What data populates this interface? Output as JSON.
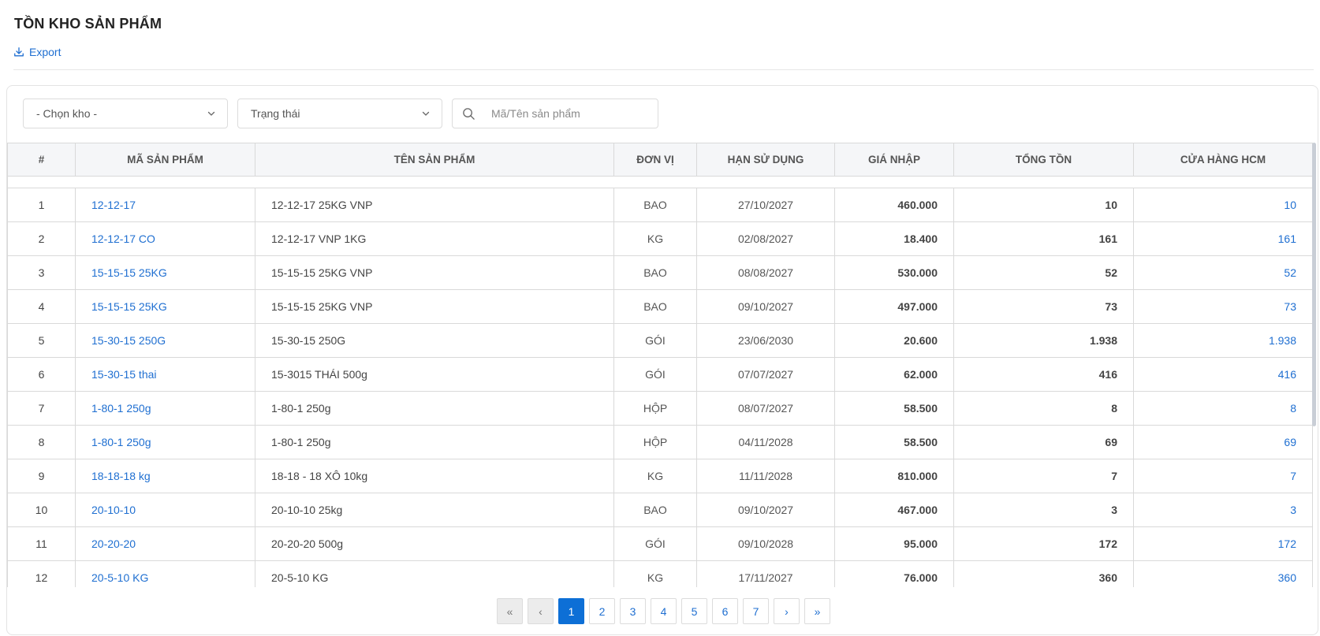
{
  "page": {
    "title": "TỒN KHO SẢN PHẨM",
    "export_label": "Export"
  },
  "filters": {
    "warehouse_placeholder": "- Chọn kho -",
    "status_placeholder": "Trạng thái",
    "search_placeholder": "Mã/Tên sản phẩm"
  },
  "table": {
    "headers": [
      "#",
      "MÃ SẢN PHẨM",
      "TÊN SẢN PHẨM",
      "ĐƠN VỊ",
      "HẠN SỬ DỤNG",
      "GIÁ NHẬP",
      "TỔNG TỒN",
      "CỬA HÀNG HCM"
    ],
    "rows": [
      {
        "idx": "1",
        "code": "12-12-17",
        "name": "12-12-17 25KG VNP",
        "unit": "BAO",
        "expiry": "27/10/2027",
        "price": "460.000",
        "total": "10",
        "store": "10"
      },
      {
        "idx": "2",
        "code": "12-12-17 CO",
        "name": "12-12-17 VNP 1KG",
        "unit": "KG",
        "expiry": "02/08/2027",
        "price": "18.400",
        "total": "161",
        "store": "161"
      },
      {
        "idx": "3",
        "code": "15-15-15 25KG",
        "name": "15-15-15 25KG VNP",
        "unit": "BAO",
        "expiry": "08/08/2027",
        "price": "530.000",
        "total": "52",
        "store": "52"
      },
      {
        "idx": "4",
        "code": "15-15-15 25KG",
        "name": "15-15-15 25KG VNP",
        "unit": "BAO",
        "expiry": "09/10/2027",
        "price": "497.000",
        "total": "73",
        "store": "73"
      },
      {
        "idx": "5",
        "code": "15-30-15 250G",
        "name": "15-30-15 250G",
        "unit": "GÓI",
        "expiry": "23/06/2030",
        "price": "20.600",
        "total": "1.938",
        "store": "1.938"
      },
      {
        "idx": "6",
        "code": "15-30-15 thai",
        "name": "15-3015 THÁI 500g",
        "unit": "GÓI",
        "expiry": "07/07/2027",
        "price": "62.000",
        "total": "416",
        "store": "416"
      },
      {
        "idx": "7",
        "code": "1-80-1 250g",
        "name": "1-80-1 250g",
        "unit": "HỘP",
        "expiry": "08/07/2027",
        "price": "58.500",
        "total": "8",
        "store": "8"
      },
      {
        "idx": "8",
        "code": "1-80-1 250g",
        "name": "1-80-1 250g",
        "unit": "HỘP",
        "expiry": "04/11/2028",
        "price": "58.500",
        "total": "69",
        "store": "69"
      },
      {
        "idx": "9",
        "code": "18-18-18 kg",
        "name": "18-18 - 18 XÔ 10kg",
        "unit": "KG",
        "expiry": "11/11/2028",
        "price": "810.000",
        "total": "7",
        "store": "7"
      },
      {
        "idx": "10",
        "code": "20-10-10",
        "name": "20-10-10 25kg",
        "unit": "BAO",
        "expiry": "09/10/2027",
        "price": "467.000",
        "total": "3",
        "store": "3"
      },
      {
        "idx": "11",
        "code": "20-20-20",
        "name": "20-20-20 500g",
        "unit": "GÓI",
        "expiry": "09/10/2028",
        "price": "95.000",
        "total": "172",
        "store": "172"
      },
      {
        "idx": "12",
        "code": "20-5-10 KG",
        "name": "20-5-10 KG",
        "unit": "KG",
        "expiry": "17/11/2027",
        "price": "76.000",
        "total": "360",
        "store": "360"
      }
    ]
  },
  "pagination": {
    "first": "«",
    "prev": "‹",
    "pages": [
      "1",
      "2",
      "3",
      "4",
      "5",
      "6",
      "7"
    ],
    "active_page": "1",
    "next": "›",
    "last": "»"
  },
  "colors": {
    "link": "#1f6fd1",
    "active_page": "#0d6fd6",
    "header_bg": "#f5f6f8"
  },
  "icons": {
    "export": "download-icon",
    "dropdown": "chevron-down-icon",
    "search": "search-icon"
  }
}
